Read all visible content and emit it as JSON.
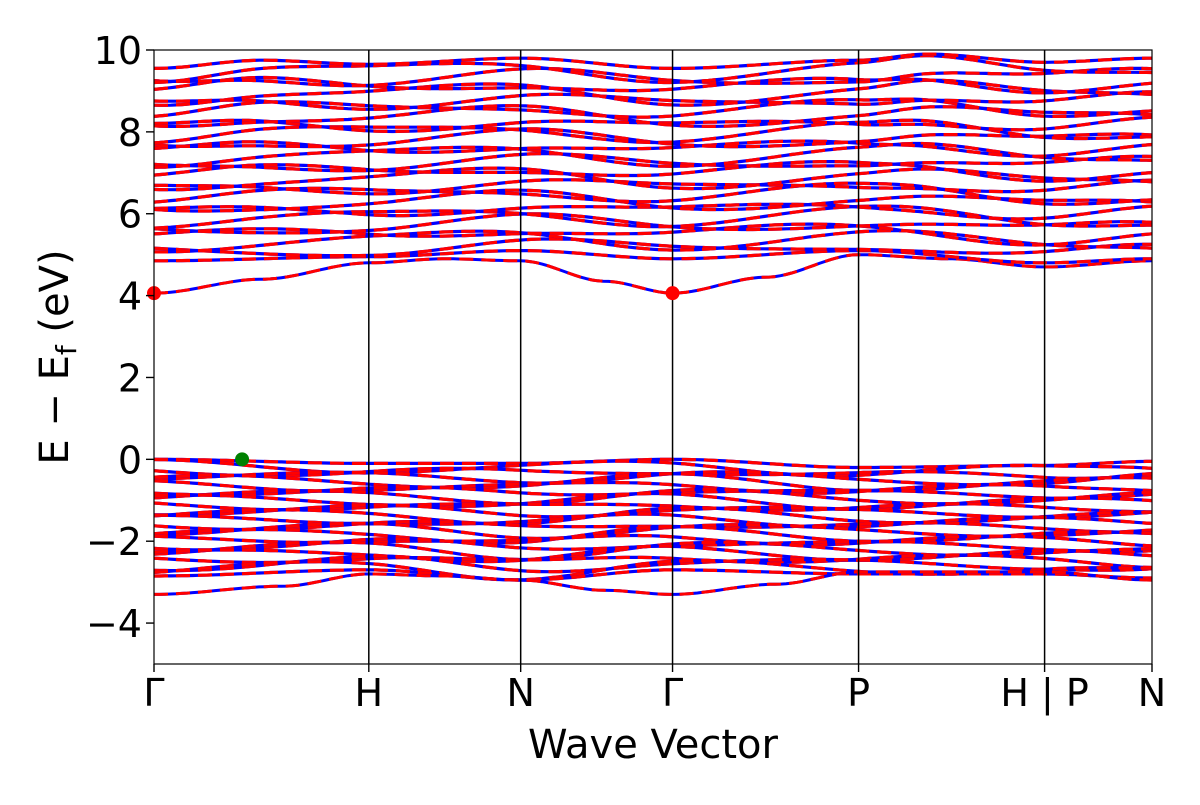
{
  "chart_data": {
    "type": "line",
    "title": "",
    "xlabel": "Wave Vector",
    "ylabel_main": "E − E",
    "ylabel_sub": "f",
    "ylabel_unit": "(eV)",
    "ylim": [
      -5,
      10
    ],
    "yticks": [
      -4,
      -2,
      0,
      2,
      4,
      6,
      8,
      10
    ],
    "ytick_labels": [
      "−4",
      "−2",
      "0",
      "2",
      "4",
      "6",
      "8",
      "10"
    ],
    "kpath": [
      {
        "label": "Γ",
        "x": 0.0
      },
      {
        "label": "H",
        "x": 1.0
      },
      {
        "label": "N",
        "x": 1.707
      },
      {
        "label": "Γ",
        "x": 2.414
      },
      {
        "label": "P",
        "x": 3.28
      },
      {
        "label": "H | P",
        "x": 4.146
      },
      {
        "label": "N",
        "x": 4.646
      }
    ],
    "spin_colors": {
      "up": "#0000ff",
      "down": "#ff0000"
    },
    "extrema": [
      {
        "name": "CBM",
        "x": 0.0,
        "y": 4.06,
        "color": "#ff0000"
      },
      {
        "name": "CBM",
        "x": 2.414,
        "y": 4.06,
        "color": "#ff0000"
      },
      {
        "name": "VBM",
        "x": 0.41,
        "y": 0.0,
        "color": "#008000"
      }
    ],
    "valence": {
      "top": [
        [
          0,
          0.0
        ],
        [
          1.0,
          -0.1
        ],
        [
          1.707,
          -0.1
        ],
        [
          2.414,
          0.0
        ],
        [
          3.28,
          -0.2
        ],
        [
          4.146,
          -0.15
        ],
        [
          4.646,
          -0.05
        ]
      ],
      "bottom_main": [
        [
          0,
          -2.85
        ],
        [
          1.0,
          -2.7
        ],
        [
          1.707,
          -2.95
        ],
        [
          2.414,
          -2.7
        ],
        [
          3.28,
          -2.8
        ],
        [
          4.146,
          -2.8
        ],
        [
          4.646,
          -2.9
        ]
      ],
      "lowest_band": [
        [
          0,
          -3.3
        ],
        [
          0.6,
          -3.1
        ],
        [
          1.0,
          -2.8
        ],
        [
          1.35,
          -2.85
        ],
        [
          1.707,
          -2.95
        ],
        [
          2.1,
          -3.2
        ],
        [
          2.414,
          -3.3
        ],
        [
          2.9,
          -3.05
        ],
        [
          3.28,
          -2.75
        ],
        [
          3.7,
          -2.75
        ],
        [
          4.146,
          -2.75
        ],
        [
          4.646,
          -2.95
        ]
      ]
    },
    "conduction": {
      "lowest_band": [
        [
          0,
          4.06
        ],
        [
          0.5,
          4.4
        ],
        [
          1.0,
          4.8
        ],
        [
          1.35,
          4.9
        ],
        [
          1.707,
          4.85
        ],
        [
          2.1,
          4.35
        ],
        [
          2.414,
          4.06
        ],
        [
          2.85,
          4.45
        ],
        [
          3.28,
          5.0
        ],
        [
          3.7,
          4.9
        ],
        [
          4.146,
          4.7
        ],
        [
          4.646,
          4.85
        ]
      ],
      "second_band": [
        [
          0,
          4.85
        ],
        [
          1.0,
          4.95
        ],
        [
          1.707,
          5.1
        ],
        [
          2.414,
          4.9
        ],
        [
          3.28,
          5.1
        ],
        [
          4.146,
          4.8
        ],
        [
          4.646,
          4.9
        ]
      ],
      "top": [
        [
          0,
          9.55
        ],
        [
          0.5,
          9.75
        ],
        [
          1.0,
          9.65
        ],
        [
          1.707,
          9.8
        ],
        [
          2.414,
          9.55
        ],
        [
          3.28,
          9.75
        ],
        [
          3.6,
          9.9
        ],
        [
          4.146,
          9.7
        ],
        [
          4.646,
          9.8
        ]
      ]
    }
  }
}
